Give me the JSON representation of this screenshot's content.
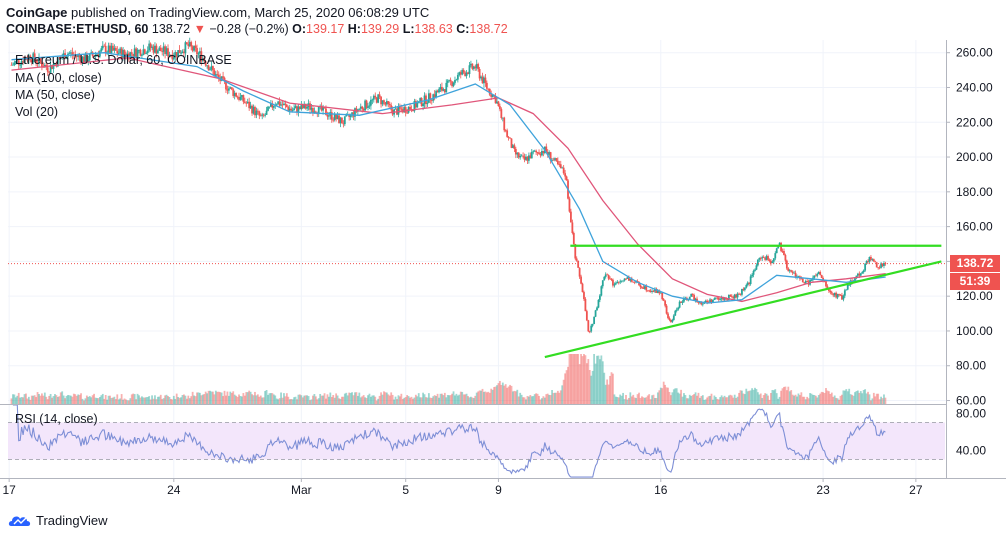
{
  "header": {
    "publisher": "CoinGape",
    "published_text": "published on TradingView.com, March 25, 2020 06:08:29 UTC",
    "symbol": "COINBASE:ETHUSD, 60",
    "last": "138.72",
    "change": "−0.28 (−0.2%)",
    "o_label": "O:",
    "o_val": "139.17",
    "h_label": "H:",
    "h_val": "139.29",
    "l_label": "L:",
    "l_val": "138.63",
    "c_label": "C:",
    "c_val": "138.72"
  },
  "legend": {
    "title": "Ethereum / U.S. Dollar, 60, COINBASE",
    "ma100": "MA (100, close)",
    "ma50": "MA (50, close)",
    "vol": "Vol (20)",
    "rsi": "RSI (14, close)"
  },
  "price_tags": {
    "last": "138.72",
    "countdown": "51:39"
  },
  "footer": {
    "brand": "TradingView"
  },
  "colors": {
    "up": "#26a69a",
    "down": "#ef5350",
    "ma100": "#e0567a",
    "ma50": "#3fa3db",
    "trend": "#33dd22",
    "rsi": "#7e8fd6",
    "rsi_band": "#f3e6fb",
    "last_tag": "#ef5350",
    "timer_tag": "#ef5350"
  },
  "chart_data": {
    "type": "candlestick",
    "y_axis": {
      "range": [
        58,
        265
      ],
      "ticks": [
        60,
        80,
        100,
        120,
        140,
        160,
        180,
        200,
        220,
        240,
        260
      ]
    },
    "rsi_axis": {
      "range": [
        10,
        90
      ],
      "ticks": [
        40,
        80
      ],
      "band": [
        30,
        70
      ]
    },
    "x_ticks": [
      "17",
      "24",
      "Mar",
      "5",
      "9",
      "16",
      "23",
      "27"
    ],
    "x_tick_days": [
      -0.1,
      7,
      12.5,
      17,
      21,
      28,
      35,
      39
    ],
    "last_price": 138.72,
    "price_path": [
      {
        "d": 0,
        "p": 253
      },
      {
        "d": 0.8,
        "p": 258
      },
      {
        "d": 1.6,
        "p": 251
      },
      {
        "d": 2.4,
        "p": 260
      },
      {
        "d": 3.2,
        "p": 256
      },
      {
        "d": 4,
        "p": 262
      },
      {
        "d": 5,
        "p": 259
      },
      {
        "d": 6,
        "p": 263
      },
      {
        "d": 7,
        "p": 259
      },
      {
        "d": 7.6,
        "p": 264
      },
      {
        "d": 8.2,
        "p": 258
      },
      {
        "d": 8.8,
        "p": 247
      },
      {
        "d": 9.5,
        "p": 238
      },
      {
        "d": 10.2,
        "p": 230
      },
      {
        "d": 10.8,
        "p": 222
      },
      {
        "d": 11.4,
        "p": 232
      },
      {
        "d": 12.1,
        "p": 227
      },
      {
        "d": 12.8,
        "p": 229
      },
      {
        "d": 13.5,
        "p": 226
      },
      {
        "d": 14.3,
        "p": 220
      },
      {
        "d": 15,
        "p": 228
      },
      {
        "d": 15.8,
        "p": 234
      },
      {
        "d": 16.5,
        "p": 226
      },
      {
        "d": 17.3,
        "p": 229
      },
      {
        "d": 18,
        "p": 234
      },
      {
        "d": 18.8,
        "p": 241
      },
      {
        "d": 19.4,
        "p": 248
      },
      {
        "d": 20,
        "p": 252
      },
      {
        "d": 20.5,
        "p": 240
      },
      {
        "d": 20.9,
        "p": 233
      },
      {
        "d": 21.3,
        "p": 215
      },
      {
        "d": 21.7,
        "p": 202
      },
      {
        "d": 22.1,
        "p": 198
      },
      {
        "d": 22.5,
        "p": 202
      },
      {
        "d": 23,
        "p": 204
      },
      {
        "d": 23.5,
        "p": 196
      },
      {
        "d": 23.9,
        "p": 190
      },
      {
        "d": 24.1,
        "p": 165
      },
      {
        "d": 24.3,
        "p": 143
      },
      {
        "d": 24.6,
        "p": 126
      },
      {
        "d": 24.9,
        "p": 97
      },
      {
        "d": 25.2,
        "p": 112
      },
      {
        "d": 25.6,
        "p": 134
      },
      {
        "d": 26,
        "p": 126
      },
      {
        "d": 26.5,
        "p": 131
      },
      {
        "d": 27,
        "p": 127
      },
      {
        "d": 27.5,
        "p": 124
      },
      {
        "d": 28,
        "p": 122
      },
      {
        "d": 28.4,
        "p": 104
      },
      {
        "d": 28.8,
        "p": 116
      },
      {
        "d": 29.3,
        "p": 120
      },
      {
        "d": 29.8,
        "p": 116
      },
      {
        "d": 30.3,
        "p": 118
      },
      {
        "d": 30.8,
        "p": 119
      },
      {
        "d": 31.3,
        "p": 120
      },
      {
        "d": 31.8,
        "p": 128
      },
      {
        "d": 32.3,
        "p": 143
      },
      {
        "d": 32.8,
        "p": 140
      },
      {
        "d": 33.1,
        "p": 150
      },
      {
        "d": 33.5,
        "p": 135
      },
      {
        "d": 33.9,
        "p": 131
      },
      {
        "d": 34.3,
        "p": 127
      },
      {
        "d": 34.8,
        "p": 133
      },
      {
        "d": 35.3,
        "p": 122
      },
      {
        "d": 35.8,
        "p": 119
      },
      {
        "d": 36.2,
        "p": 129
      },
      {
        "d": 36.6,
        "p": 133
      },
      {
        "d": 37,
        "p": 142
      },
      {
        "d": 37.4,
        "p": 137
      },
      {
        "d": 37.7,
        "p": 138.72
      }
    ],
    "ma100_path": [
      {
        "d": 0,
        "p": 250
      },
      {
        "d": 5,
        "p": 257
      },
      {
        "d": 9,
        "p": 245
      },
      {
        "d": 12,
        "p": 231
      },
      {
        "d": 16,
        "p": 225
      },
      {
        "d": 19,
        "p": 230
      },
      {
        "d": 21,
        "p": 234
      },
      {
        "d": 22.5,
        "p": 225
      },
      {
        "d": 24,
        "p": 205
      },
      {
        "d": 25.5,
        "p": 175
      },
      {
        "d": 27,
        "p": 150
      },
      {
        "d": 28.5,
        "p": 130
      },
      {
        "d": 30,
        "p": 121
      },
      {
        "d": 31.5,
        "p": 117
      },
      {
        "d": 33,
        "p": 122
      },
      {
        "d": 34.5,
        "p": 128
      },
      {
        "d": 36,
        "p": 130
      },
      {
        "d": 37.7,
        "p": 133
      }
    ],
    "ma50_path": [
      {
        "d": 0,
        "p": 256
      },
      {
        "d": 4,
        "p": 260
      },
      {
        "d": 8,
        "p": 252
      },
      {
        "d": 10,
        "p": 238
      },
      {
        "d": 12,
        "p": 226
      },
      {
        "d": 15,
        "p": 224
      },
      {
        "d": 18,
        "p": 233
      },
      {
        "d": 20,
        "p": 242
      },
      {
        "d": 21.5,
        "p": 230
      },
      {
        "d": 23,
        "p": 204
      },
      {
        "d": 24.5,
        "p": 170
      },
      {
        "d": 25.5,
        "p": 140
      },
      {
        "d": 27,
        "p": 128
      },
      {
        "d": 28.5,
        "p": 120
      },
      {
        "d": 30,
        "p": 116
      },
      {
        "d": 31.5,
        "p": 118
      },
      {
        "d": 33,
        "p": 132
      },
      {
        "d": 34.5,
        "p": 130
      },
      {
        "d": 36,
        "p": 128
      },
      {
        "d": 37.7,
        "p": 131
      }
    ],
    "trendlines": [
      {
        "name": "resistance",
        "from": {
          "d": 24.1,
          "p": 149
        },
        "to": {
          "d": 40.1,
          "p": 149
        }
      },
      {
        "name": "support",
        "from": {
          "d": 23,
          "p": 85
        },
        "to": {
          "d": 40.1,
          "p": 140
        }
      }
    ]
  }
}
